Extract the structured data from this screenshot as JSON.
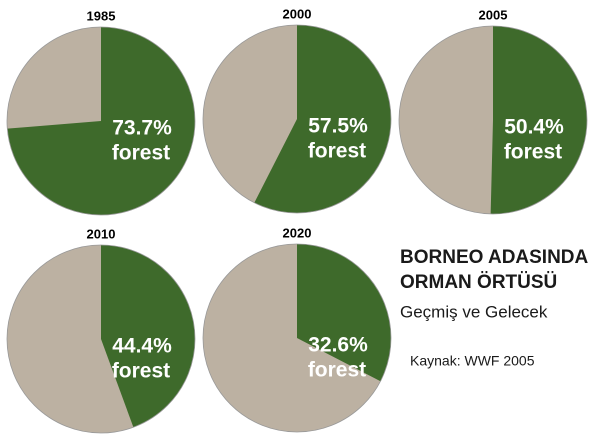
{
  "chart_data": [
    {
      "type": "pie",
      "title": "1985",
      "values": [
        73.7
      ],
      "value_labels": [
        "73.7%"
      ],
      "label": "forest",
      "colors": [
        "#3e6a2b",
        "#bcb1a2"
      ]
    },
    {
      "type": "pie",
      "title": "2000",
      "values": [
        57.5
      ],
      "value_labels": [
        "57.5%"
      ],
      "label": "forest",
      "colors": [
        "#3e6a2b",
        "#bcb1a2"
      ]
    },
    {
      "type": "pie",
      "title": "2005",
      "values": [
        50.4
      ],
      "value_labels": [
        "50.4%"
      ],
      "label": "forest",
      "colors": [
        "#3e6a2b",
        "#bcb1a2"
      ]
    },
    {
      "type": "pie",
      "title": "2010",
      "values": [
        44.4
      ],
      "value_labels": [
        "44.4%"
      ],
      "label": "forest",
      "colors": [
        "#3e6a2b",
        "#bcb1a2"
      ]
    },
    {
      "type": "pie",
      "title": "2020",
      "values": [
        32.6
      ],
      "value_labels": [
        "32.6%"
      ],
      "label": "forest",
      "colors": [
        "#3e6a2b",
        "#bcb1a2"
      ]
    }
  ],
  "text": {
    "heading": [
      "BORNEO ADASINDA",
      "ORMAN ÖRTÜSÜ"
    ],
    "subtitle": "Geçmiş ve Gelecek",
    "source": "Kaynak: WWF 2005"
  }
}
